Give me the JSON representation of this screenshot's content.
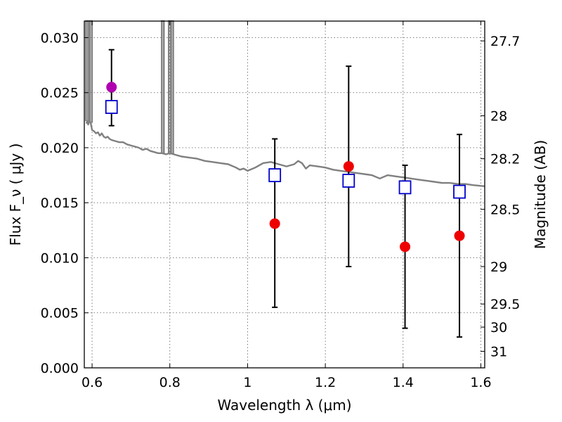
{
  "chart_data": {
    "type": "scatter",
    "title": "",
    "xlabel": "Wavelength  λ (μm)",
    "ylabel": "Flux  F_ν  ( μJy )",
    "ylabel_right": "Magnitude (AB)",
    "xlim": [
      0.58,
      1.61
    ],
    "ylim": [
      0,
      0.0315
    ],
    "grid": true,
    "x_ticks": [
      {
        "v": 0.6,
        "label": "0.6"
      },
      {
        "v": 0.8,
        "label": "0.8"
      },
      {
        "v": 1.0,
        "label": "1"
      },
      {
        "v": 1.2,
        "label": "1.2"
      },
      {
        "v": 1.4,
        "label": "1.4"
      },
      {
        "v": 1.6,
        "label": "1.6"
      }
    ],
    "y_ticks": [
      {
        "v": 0.0,
        "label": "0.000"
      },
      {
        "v": 0.005,
        "label": "0.005"
      },
      {
        "v": 0.01,
        "label": "0.010"
      },
      {
        "v": 0.015,
        "label": "0.015"
      },
      {
        "v": 0.02,
        "label": "0.020"
      },
      {
        "v": 0.025,
        "label": "0.025"
      },
      {
        "v": 0.03,
        "label": "0.030"
      }
    ],
    "y2_ticks": [
      {
        "label": "27.7",
        "flux": 0.0297
      },
      {
        "label": "28",
        "flux": 0.0229
      },
      {
        "label": "28.2",
        "flux": 0.019
      },
      {
        "label": "28.5",
        "flux": 0.0144
      },
      {
        "label": "29",
        "flux": 0.0092
      },
      {
        "label": "29.5",
        "flux": 0.0058
      },
      {
        "label": "30",
        "flux": 0.0037
      },
      {
        "label": "31",
        "flux": 0.0015
      }
    ],
    "model_spectrum": {
      "color": "#808080",
      "points": [
        [
          0.585,
          0.0222
        ],
        [
          0.588,
          0.0224
        ],
        [
          0.59,
          0.0221
        ],
        [
          0.593,
          0.0224
        ],
        [
          0.596,
          0.0223
        ],
        [
          0.6,
          0.0216
        ],
        [
          0.605,
          0.0215
        ],
        [
          0.61,
          0.0213
        ],
        [
          0.615,
          0.0214
        ],
        [
          0.62,
          0.0211
        ],
        [
          0.625,
          0.0213
        ],
        [
          0.63,
          0.021
        ],
        [
          0.635,
          0.0209
        ],
        [
          0.64,
          0.021
        ],
        [
          0.645,
          0.0208
        ],
        [
          0.65,
          0.0207
        ],
        [
          0.66,
          0.0206
        ],
        [
          0.67,
          0.0205
        ],
        [
          0.68,
          0.0205
        ],
        [
          0.69,
          0.0203
        ],
        [
          0.7,
          0.0202
        ],
        [
          0.71,
          0.0201
        ],
        [
          0.72,
          0.02
        ],
        [
          0.73,
          0.0198
        ],
        [
          0.74,
          0.0199
        ],
        [
          0.75,
          0.0197
        ],
        [
          0.76,
          0.0196
        ],
        [
          0.77,
          0.0195
        ],
        [
          0.78,
          0.0195
        ],
        [
          0.79,
          0.0194
        ],
        [
          0.8,
          0.0195
        ],
        [
          0.81,
          0.0194
        ],
        [
          0.83,
          0.0192
        ],
        [
          0.85,
          0.0191
        ],
        [
          0.87,
          0.019
        ],
        [
          0.89,
          0.0188
        ],
        [
          0.91,
          0.0187
        ],
        [
          0.93,
          0.0186
        ],
        [
          0.95,
          0.0185
        ],
        [
          0.97,
          0.0182
        ],
        [
          0.98,
          0.018
        ],
        [
          0.99,
          0.0181
        ],
        [
          1.0,
          0.0179
        ],
        [
          1.02,
          0.0182
        ],
        [
          1.04,
          0.0186
        ],
        [
          1.06,
          0.0187
        ],
        [
          1.08,
          0.0185
        ],
        [
          1.1,
          0.0183
        ],
        [
          1.12,
          0.0185
        ],
        [
          1.13,
          0.0188
        ],
        [
          1.14,
          0.0186
        ],
        [
          1.15,
          0.0181
        ],
        [
          1.16,
          0.0184
        ],
        [
          1.18,
          0.0183
        ],
        [
          1.2,
          0.0182
        ],
        [
          1.22,
          0.018
        ],
        [
          1.24,
          0.0179
        ],
        [
          1.26,
          0.0178
        ],
        [
          1.28,
          0.0177
        ],
        [
          1.3,
          0.0176
        ],
        [
          1.32,
          0.0175
        ],
        [
          1.34,
          0.0172
        ],
        [
          1.36,
          0.0175
        ],
        [
          1.38,
          0.0174
        ],
        [
          1.4,
          0.0173
        ],
        [
          1.42,
          0.0172
        ],
        [
          1.44,
          0.0171
        ],
        [
          1.46,
          0.017
        ],
        [
          1.48,
          0.0169
        ],
        [
          1.5,
          0.0168
        ],
        [
          1.52,
          0.0168
        ],
        [
          1.54,
          0.0167
        ],
        [
          1.56,
          0.0167
        ],
        [
          1.58,
          0.0166
        ],
        [
          1.61,
          0.0165
        ]
      ],
      "emission_lines": [
        0.587,
        0.597,
        0.782,
        0.8,
        0.806
      ]
    },
    "series": [
      {
        "marker": "square",
        "color": "#0000cc",
        "points": [
          {
            "x": 0.65,
            "y": 0.0237
          },
          {
            "x": 1.07,
            "y": 0.0175
          },
          {
            "x": 1.26,
            "y": 0.017
          },
          {
            "x": 1.405,
            "y": 0.0164
          },
          {
            "x": 1.545,
            "y": 0.016
          }
        ]
      },
      {
        "marker": "circle",
        "color": "#ee0000",
        "points": [
          {
            "x": 0.65,
            "y": 0.0255,
            "yerr_low": 0.022,
            "yerr_high": 0.0289,
            "color": "#b000b0"
          },
          {
            "x": 1.07,
            "y": 0.0131,
            "yerr_low": 0.0055,
            "yerr_high": 0.0208
          },
          {
            "x": 1.26,
            "y": 0.0183,
            "yerr_low": 0.0092,
            "yerr_high": 0.0274
          },
          {
            "x": 1.405,
            "y": 0.011,
            "yerr_low": 0.0036,
            "yerr_high": 0.0184
          },
          {
            "x": 1.545,
            "y": 0.012,
            "yerr_low": 0.0028,
            "yerr_high": 0.0212
          }
        ]
      }
    ]
  }
}
